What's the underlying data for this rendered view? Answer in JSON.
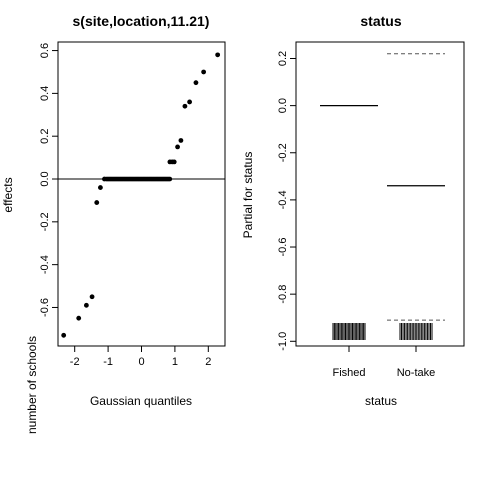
{
  "chart_data": [
    {
      "type": "scatter",
      "title": "s(site,location,11.21)",
      "xlabel": "Gaussian quantiles",
      "ylabel": "effects",
      "xlim": [
        -2.5,
        2.5
      ],
      "ylim": [
        -0.78,
        0.64
      ],
      "xticks": [
        -2,
        -1,
        0,
        1,
        2
      ],
      "yticks": [
        -0.6,
        -0.4,
        -0.2,
        0.0,
        0.2,
        0.4,
        0.6
      ],
      "xtick_labels": [
        "-2",
        "-1",
        "0",
        "1",
        "2"
      ],
      "ytick_labels": [
        "-0.6",
        "-0.4",
        "-0.2",
        "0.0",
        "0.2",
        "0.4",
        "0.6"
      ],
      "reference_line_y": 0,
      "points": [
        {
          "x": -2.33,
          "y": -0.73
        },
        {
          "x": -1.88,
          "y": -0.65
        },
        {
          "x": -1.65,
          "y": -0.59
        },
        {
          "x": -1.48,
          "y": -0.55
        },
        {
          "x": -1.34,
          "y": -0.11
        },
        {
          "x": -1.23,
          "y": -0.04
        },
        {
          "x": -1.11,
          "y": 0.0
        },
        {
          "x": 0.85,
          "y": 0.08
        },
        {
          "x": 0.92,
          "y": 0.08
        },
        {
          "x": 0.98,
          "y": 0.08
        },
        {
          "x": 1.08,
          "y": 0.15
        },
        {
          "x": 1.18,
          "y": 0.18
        },
        {
          "x": 1.3,
          "y": 0.34
        },
        {
          "x": 1.44,
          "y": 0.36
        },
        {
          "x": 1.63,
          "y": 0.45
        },
        {
          "x": 1.86,
          "y": 0.5
        },
        {
          "x": 2.28,
          "y": 0.58
        }
      ],
      "zero_run": {
        "x_from": -1.05,
        "x_to": 0.85,
        "y": 0.0
      }
    },
    {
      "type": "bar",
      "title": "status",
      "xlabel": "status",
      "ylabel": "Partial for status",
      "categories": [
        "Fished",
        "No-take"
      ],
      "values": [
        0.0,
        -0.34
      ],
      "ci_upper": [
        null,
        0.22
      ],
      "ci_lower": [
        null,
        -0.91
      ],
      "ylim": [
        -1.02,
        0.27
      ],
      "yticks": [
        -1.0,
        -0.8,
        -0.6,
        -0.4,
        -0.2,
        0.0,
        0.2
      ],
      "ytick_labels": [
        "-1.0",
        "-0.8",
        "-0.6",
        "-0.4",
        "-0.2",
        "0.0",
        "0.2"
      ],
      "rug_count": [
        24,
        22
      ]
    }
  ],
  "overlay_label": "number of schools"
}
